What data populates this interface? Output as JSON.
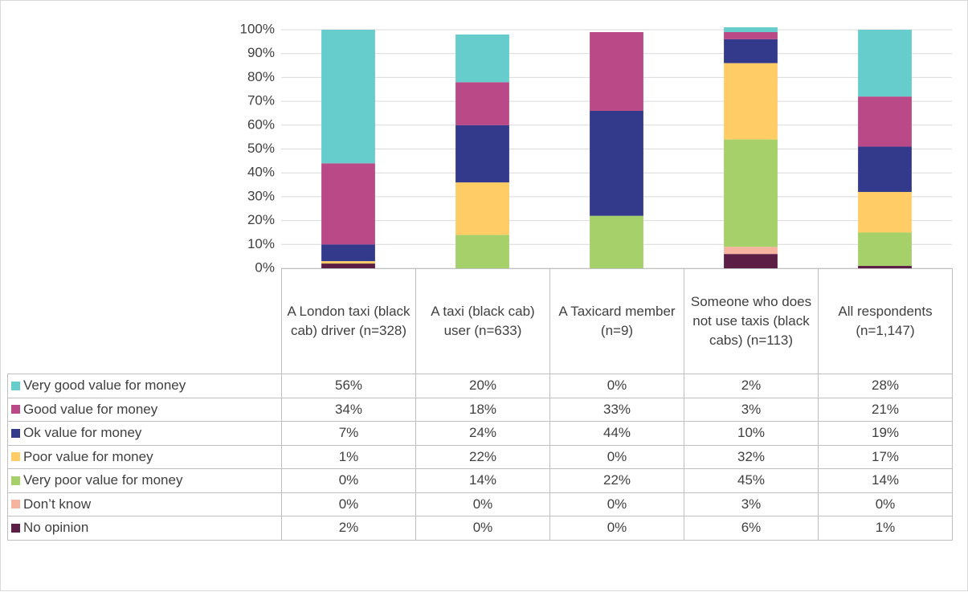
{
  "chart_data": {
    "type": "stacked_bar",
    "categories": [
      "A London taxi (black cab) driver (n=328)",
      "A taxi (black cab) user (n=633)",
      "A Taxicard member (n=9)",
      "Someone who does not use taxis (black cabs) (n=113)",
      "All respondents (n=1,147)"
    ],
    "series": [
      {
        "name": "Very good value for money",
        "color": "#66cccc",
        "values": [
          56,
          20,
          0,
          2,
          28
        ],
        "value_labels": [
          "56%",
          "20%",
          "0%",
          "2%",
          "28%"
        ]
      },
      {
        "name": "Good value for money",
        "color": "#b94a87",
        "values": [
          34,
          18,
          33,
          3,
          21
        ],
        "value_labels": [
          "34%",
          "18%",
          "33%",
          "3%",
          "21%"
        ]
      },
      {
        "name": "Ok value for money",
        "color": "#333a8c",
        "values": [
          7,
          24,
          44,
          10,
          19
        ],
        "value_labels": [
          "7%",
          "24%",
          "44%",
          "10%",
          "19%"
        ]
      },
      {
        "name": "Poor value for money",
        "color": "#ffcc66",
        "values": [
          1,
          22,
          0,
          32,
          17
        ],
        "value_labels": [
          "1%",
          "22%",
          "0%",
          "32%",
          "17%"
        ]
      },
      {
        "name": "Very poor value for money",
        "color": "#a6d06a",
        "values": [
          0,
          14,
          22,
          45,
          14
        ],
        "value_labels": [
          "0%",
          "14%",
          "22%",
          "45%",
          "14%"
        ]
      },
      {
        "name": "Don’t know",
        "color": "#f5b3a0",
        "values": [
          0,
          0,
          0,
          3,
          0
        ],
        "value_labels": [
          "0%",
          "0%",
          "0%",
          "3%",
          "0%"
        ]
      },
      {
        "name": "No opinion",
        "color": "#5c1e45",
        "values": [
          2,
          0,
          0,
          6,
          1
        ],
        "value_labels": [
          "2%",
          "0%",
          "0%",
          "6%",
          "1%"
        ]
      }
    ],
    "ylim": [
      0,
      100
    ],
    "yticks": [
      {
        "value": 0,
        "label": "0%"
      },
      {
        "value": 10,
        "label": "10%"
      },
      {
        "value": 20,
        "label": "20%"
      },
      {
        "value": 30,
        "label": "30%"
      },
      {
        "value": 40,
        "label": "40%"
      },
      {
        "value": 50,
        "label": "50%"
      },
      {
        "value": 60,
        "label": "60%"
      },
      {
        "value": 70,
        "label": "70%"
      },
      {
        "value": 80,
        "label": "80%"
      },
      {
        "value": 90,
        "label": "90%"
      },
      {
        "value": 100,
        "label": "100%"
      }
    ],
    "grid": true
  }
}
